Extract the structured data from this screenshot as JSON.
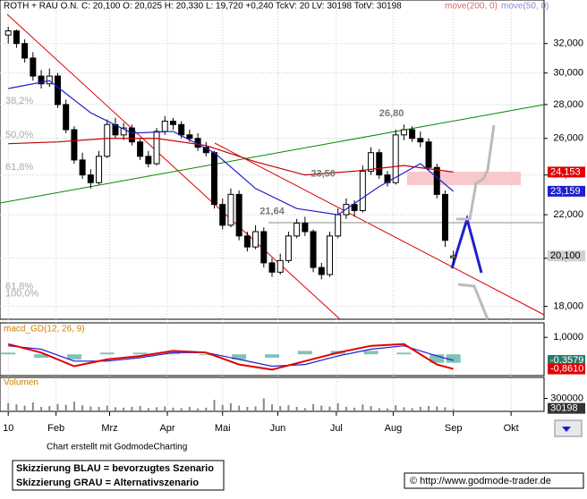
{
  "header": {
    "title": "ROTH + RAU O.N.  C: 20,100  O: 20,025  H: 20,330  L: 19,720  +0,240  TckV: 20  LV: 30198  TotV: 30198",
    "ma200_label": "move(200, 0)",
    "ma50_label": "move(50, 0)"
  },
  "chart_data": {
    "type": "candlestick",
    "log_scale": true,
    "grid": true,
    "xlim": [
      -1,
      65
    ],
    "ylim": [
      17500,
      35200
    ],
    "yticks": [
      {
        "value": 18000,
        "label": "18,000"
      },
      {
        "value": 20000,
        "label": "20,000"
      },
      {
        "value": 22000,
        "label": "22,000"
      },
      {
        "value": 24000,
        "label": "24,000"
      },
      {
        "value": 26000,
        "label": "26,000"
      },
      {
        "value": 28000,
        "label": "28,000"
      },
      {
        "value": 30000,
        "label": "30,000"
      },
      {
        "value": 32000,
        "label": "32,000"
      }
    ],
    "xticks": [
      {
        "value": 0,
        "label": "10"
      },
      {
        "value": 5.8,
        "label": "Feb"
      },
      {
        "value": 12.3,
        "label": "Mrz"
      },
      {
        "value": 19.3,
        "label": "Apr"
      },
      {
        "value": 26,
        "label": "Mai"
      },
      {
        "value": 32.7,
        "label": "Jun"
      },
      {
        "value": 39.8,
        "label": "Jul"
      },
      {
        "value": 46.7,
        "label": "Aug"
      },
      {
        "value": 54,
        "label": "Sep"
      },
      {
        "value": 61,
        "label": "Okt"
      }
    ],
    "candles": [
      [
        32600,
        33200,
        32000,
        32900
      ],
      [
        32900,
        33000,
        31700,
        32000
      ],
      [
        32000,
        32300,
        30700,
        31000
      ],
      [
        31000,
        31400,
        29500,
        29800
      ],
      [
        29800,
        30200,
        29000,
        29300
      ],
      [
        29300,
        30300,
        29100,
        29800
      ],
      [
        29800,
        30000,
        27800,
        28000
      ],
      [
        28000,
        28300,
        26300,
        26500
      ],
      [
        26500,
        26700,
        24600,
        24800
      ],
      [
        24800,
        25200,
        23800,
        24000
      ],
      [
        24000,
        24300,
        23300,
        23600
      ],
      [
        23600,
        25300,
        23500,
        25000
      ],
      [
        25000,
        27100,
        24900,
        26800
      ],
      [
        26800,
        27200,
        26000,
        26200
      ],
      [
        26200,
        26900,
        25900,
        26600
      ],
      [
        26600,
        26800,
        25600,
        25800
      ],
      [
        25800,
        26000,
        24800,
        25000
      ],
      [
        25000,
        25300,
        24400,
        24600
      ],
      [
        24600,
        26600,
        24500,
        26400
      ],
      [
        26400,
        27300,
        26200,
        27000
      ],
      [
        27000,
        27200,
        26500,
        26800
      ],
      [
        26800,
        27000,
        26000,
        26200
      ],
      [
        26200,
        26500,
        25800,
        26000
      ],
      [
        26000,
        26300,
        25300,
        25500
      ],
      [
        25500,
        25800,
        25000,
        25200
      ],
      [
        25200,
        25300,
        22300,
        22500
      ],
      [
        22500,
        22800,
        21300,
        21500
      ],
      [
        21500,
        23300,
        21400,
        23000
      ],
      [
        23000,
        23200,
        20800,
        21000
      ],
      [
        21000,
        21200,
        20300,
        20500
      ],
      [
        20500,
        21500,
        20400,
        21200
      ],
      [
        21200,
        21400,
        19600,
        19800
      ],
      [
        19800,
        20000,
        19200,
        19400
      ],
      [
        19400,
        20200,
        19300,
        19900
      ],
      [
        19900,
        21200,
        19800,
        21000
      ],
      [
        21000,
        21800,
        20900,
        21600
      ],
      [
        21600,
        21900,
        21000,
        21200
      ],
      [
        21200,
        21300,
        19400,
        19600
      ],
      [
        19600,
        19800,
        19100,
        19300
      ],
      [
        19300,
        21200,
        19200,
        21000
      ],
      [
        21000,
        22300,
        20900,
        22000
      ],
      [
        22000,
        22800,
        21800,
        22500
      ],
      [
        22500,
        22700,
        21900,
        22200
      ],
      [
        22200,
        24500,
        22100,
        24200
      ],
      [
        24200,
        25500,
        24000,
        25200
      ],
      [
        25200,
        25400,
        23800,
        24000
      ],
      [
        24000,
        24200,
        23400,
        23600
      ],
      [
        23600,
        26500,
        23500,
        26200
      ],
      [
        26200,
        26800,
        25900,
        26500
      ],
      [
        26500,
        26700,
        25800,
        26000
      ],
      [
        26000,
        26400,
        25500,
        25800
      ],
      [
        25800,
        26000,
        24200,
        24400
      ],
      [
        24400,
        24600,
        22800,
        23000
      ],
      [
        23000,
        23200,
        20500,
        20800
      ],
      [
        20025,
        20330,
        19720,
        20100
      ]
    ],
    "series": [
      {
        "name": "move(200, 0)",
        "color": "#c00000",
        "x": [
          0,
          6,
          12,
          18,
          24,
          30,
          36,
          42,
          48,
          54
        ],
        "values": [
          25700,
          25800,
          26000,
          26000,
          25600,
          24700,
          24000,
          24200,
          24500,
          24153
        ]
      },
      {
        "name": "move(50, 0)",
        "color": "#1f1fcc",
        "x": [
          0,
          5,
          10,
          15,
          20,
          25,
          30,
          35,
          40,
          45,
          50,
          54
        ],
        "values": [
          29000,
          29500,
          27500,
          26300,
          26400,
          25200,
          23300,
          22300,
          22000,
          23400,
          24600,
          23159
        ]
      }
    ],
    "price_markers": [
      {
        "value": 24153,
        "label": "24,153",
        "color": "#e00000",
        "text_color": "#ffffff"
      },
      {
        "value": 23159,
        "label": "23,159",
        "color": "#1f1fcc",
        "text_color": "#ffffff"
      },
      {
        "value": 20100,
        "label": "20,100",
        "color": "#d0d0d0",
        "text_color": "#000000"
      }
    ],
    "annotations": [
      {
        "text": "26,80",
        "x": 46.5,
        "y": 26800
      },
      {
        "text": "23,50",
        "x": 38.2,
        "y": 23500
      },
      {
        "text": "21,64",
        "x": 32,
        "y": 21640
      }
    ],
    "fib_labels": [
      {
        "text": "38,2%",
        "y": 28200
      },
      {
        "text": "50,0%",
        "y": 26200
      },
      {
        "text": "61,8%",
        "y": 24400
      },
      {
        "text": "61,8%",
        "y": 18800
      },
      {
        "text": "100,0%",
        "y": 18500
      }
    ],
    "macd": {
      "title": "macd_GD(12, 26, 9)",
      "ylim": [
        -1.2,
        1.8
      ],
      "yticks": [
        {
          "value": 1,
          "label": "1,0000"
        }
      ],
      "x": [
        0,
        4,
        8,
        12,
        16,
        20,
        24,
        28,
        32,
        36,
        40,
        44,
        48,
        52,
        54
      ],
      "macd": [
        0.6,
        0.1,
        -0.7,
        -0.3,
        -0.1,
        0.2,
        0.1,
        -0.6,
        -0.9,
        -0.4,
        0.1,
        0.5,
        0.6,
        -0.6,
        -0.861
      ],
      "signal": [
        0.5,
        0.3,
        -0.4,
        -0.4,
        -0.2,
        0.1,
        0.1,
        -0.3,
        -0.7,
        -0.6,
        -0.1,
        0.3,
        0.5,
        -0.1,
        -0.3579
      ],
      "histogram": [
        0.1,
        -0.2,
        -0.3,
        0.1,
        0.1,
        0.1,
        0,
        -0.3,
        -0.2,
        0.2,
        0.2,
        0.2,
        0.1,
        -0.5,
        -0.5
      ],
      "macd_color": "#e00000",
      "signal_color": "#1f1fcc",
      "hist_color": "#2a9a8a",
      "markers": [
        {
          "value": -0.3579,
          "label": "-0,3579",
          "color": "#2a7a6a"
        },
        {
          "value": -0.861,
          "label": "-0,8610",
          "color": "#e00000"
        }
      ]
    },
    "volume": {
      "title": "Volumen",
      "ylim": [
        0,
        800000
      ],
      "yticks": [
        {
          "value": 300000,
          "label": "300000"
        }
      ],
      "marker": {
        "value": 30198,
        "label": "30198"
      },
      "values": [
        180000,
        150000,
        120000,
        200000,
        90000,
        110000,
        160000,
        140000,
        220000,
        130000,
        100000,
        90000,
        120000,
        80000,
        70000,
        90000,
        110000,
        60000,
        80000,
        100000,
        70000,
        60000,
        90000,
        50000,
        70000,
        260000,
        140000,
        180000,
        120000,
        90000,
        100000,
        300000,
        150000,
        110000,
        130000,
        90000,
        60000,
        160000,
        120000,
        100000,
        180000,
        90000,
        70000,
        150000,
        110000,
        60000,
        50000,
        130000,
        80000,
        60000,
        90000,
        110000,
        100000,
        80000,
        30198
      ]
    }
  },
  "footer": {
    "credit": "Chart erstellt mit GodmodeCharting",
    "legend_blue": "Skizzierung BLAU = bevorzugtes Szenario",
    "legend_grey": "Skizzierung GRAU = Alternativszenario",
    "copyright": "© http://www.godmode-trader.de"
  }
}
